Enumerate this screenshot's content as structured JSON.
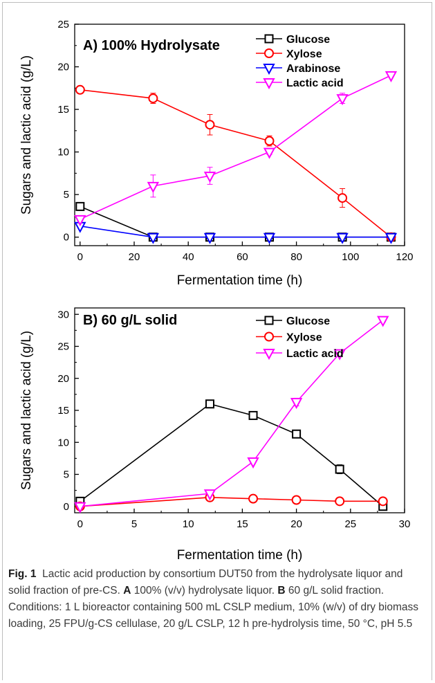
{
  "chart_data": [
    {
      "type": "line",
      "title": "A) 100% Hydrolysate",
      "xlabel": "Fermentation time (h)",
      "ylabel": "Sugars and lactic acid (g/L)",
      "xlim": [
        -2,
        120
      ],
      "ylim": [
        -1,
        25
      ],
      "xticks": [
        "0",
        "20",
        "40",
        "60",
        "80",
        "100",
        "120"
      ],
      "yticks": [
        "0",
        "5",
        "10",
        "15",
        "20",
        "25"
      ],
      "legend": "top-right",
      "series": [
        {
          "name": "Glucose",
          "color": "#000000",
          "marker": "square",
          "x": [
            0,
            27,
            48,
            70,
            97,
            115
          ],
          "y": [
            3.6,
            0,
            0,
            0,
            0,
            0
          ],
          "err": [
            0,
            0,
            0,
            0,
            0,
            0
          ]
        },
        {
          "name": "Xylose",
          "color": "#ff0000",
          "marker": "circle",
          "x": [
            0,
            27,
            48,
            70,
            97,
            115
          ],
          "y": [
            17.3,
            16.3,
            13.2,
            11.3,
            4.6,
            0
          ],
          "err": [
            0,
            0.6,
            1.2,
            0.6,
            1.1,
            0
          ]
        },
        {
          "name": "Arabinose",
          "color": "#0000ff",
          "marker": "triangle-down",
          "x": [
            0,
            27,
            48,
            70,
            97,
            115
          ],
          "y": [
            1.3,
            0,
            0,
            0,
            0,
            0
          ],
          "err": [
            0,
            0,
            0,
            0,
            0,
            0
          ]
        },
        {
          "name": "Lactic acid",
          "color": "#ff00ff",
          "marker": "triangle-down",
          "x": [
            0,
            27,
            48,
            70,
            97,
            115
          ],
          "y": [
            2.1,
            6.0,
            7.2,
            10.0,
            16.3,
            19.0
          ],
          "err": [
            0,
            1.3,
            1.0,
            0.3,
            0.6,
            0.2
          ]
        }
      ]
    },
    {
      "type": "line",
      "title": "B) 60 g/L solid",
      "xlabel": "Fermentation time (h)",
      "ylabel": "Sugars and lactic acid (g/L)",
      "xlim": [
        -0.5,
        30
      ],
      "ylim": [
        -1,
        31
      ],
      "xticks": [
        "0",
        "5",
        "10",
        "15",
        "20",
        "25",
        "30"
      ],
      "yticks": [
        "0",
        "5",
        "10",
        "15",
        "20",
        "25",
        "30"
      ],
      "legend": "top-right",
      "series": [
        {
          "name": "Glucose",
          "color": "#000000",
          "marker": "square",
          "x": [
            0,
            12,
            16,
            20,
            24,
            28
          ],
          "y": [
            0.8,
            16.0,
            14.2,
            11.3,
            5.8,
            0
          ],
          "err": [
            0,
            0,
            0,
            0.4,
            0.7,
            0
          ]
        },
        {
          "name": "Xylose",
          "color": "#ff0000",
          "marker": "circle",
          "x": [
            0,
            12,
            16,
            20,
            24,
            28
          ],
          "y": [
            0,
            1.4,
            1.2,
            1.0,
            0.8,
            0.8
          ],
          "err": [
            0,
            0,
            0,
            0,
            0,
            0
          ]
        },
        {
          "name": "Lactic acid",
          "color": "#ff00ff",
          "marker": "triangle-down",
          "x": [
            0,
            12,
            16,
            20,
            24,
            28
          ],
          "y": [
            0,
            2.0,
            7.0,
            16.3,
            23.9,
            29.1
          ],
          "err": [
            0,
            0,
            0,
            0.6,
            0.4,
            0.3
          ]
        }
      ]
    }
  ],
  "caption": {
    "label": "Fig. 1",
    "intro": "Lactic acid production by consortium DUT50 from the hydrolysate liquor and solid fraction of pre-CS. ",
    "a_label": "A",
    "a_text": " 100% (v/v) hydrolysate liquor. ",
    "b_label": "B",
    "b_text": " 60 g/L solid fraction. Conditions: 1 L bioreactor containing 500 mL CSLP medium, 10% (w/v) of dry biomass loading, 25 FPU/g-CS cellulase, 20 g/L CSLP, 12 h pre-hydrolysis time, 50 °C, pH 5.5"
  }
}
